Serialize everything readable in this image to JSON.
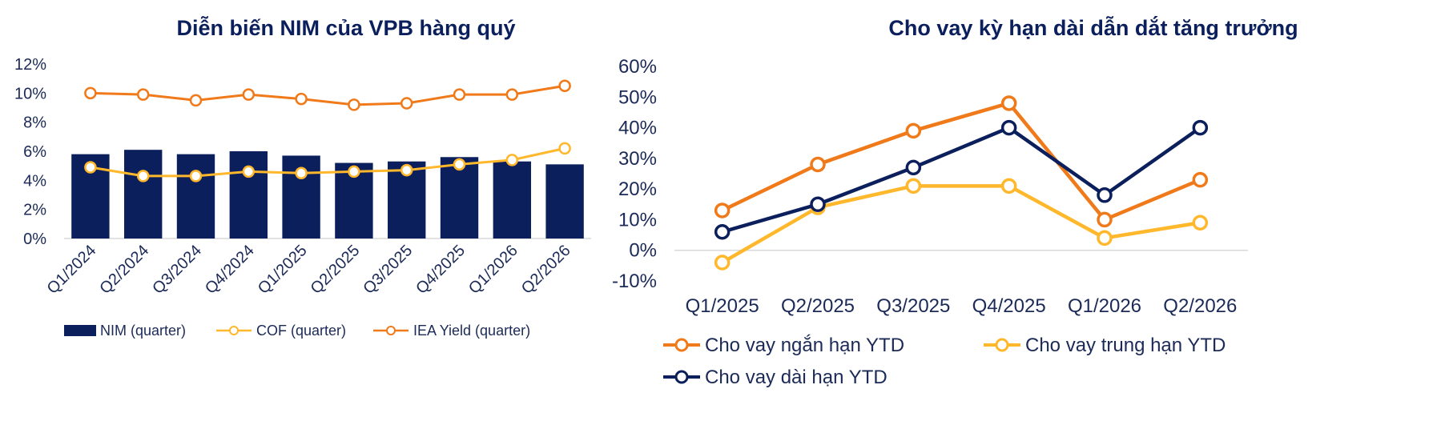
{
  "chart_data": [
    {
      "type": "bar+line",
      "title": "Diễn biến NIM của VPB hàng quý",
      "categories": [
        "Q1/2024",
        "Q2/2024",
        "Q3/2024",
        "Q4/2024",
        "Q1/2025",
        "Q2/2025",
        "Q3/2025",
        "Q4/2025",
        "Q1/2026",
        "Q2/2026"
      ],
      "y_ticks": [
        "0%",
        "2%",
        "4%",
        "6%",
        "8%",
        "10%",
        "12%"
      ],
      "ylim": [
        0,
        12
      ],
      "legend_position": "bottom",
      "series": [
        {
          "name": "NIM (quarter)",
          "type": "bar",
          "color": "#0b1f5c",
          "values": [
            5.8,
            6.1,
            5.8,
            6.0,
            5.7,
            5.2,
            5.3,
            5.6,
            5.3,
            5.1
          ]
        },
        {
          "name": "COF (quarter)",
          "type": "line",
          "color": "#ffb72b",
          "values": [
            4.9,
            4.3,
            4.3,
            4.6,
            4.5,
            4.6,
            4.7,
            5.1,
            5.4,
            6.2
          ]
        },
        {
          "name": "IEA Yield (quarter)",
          "type": "line",
          "color": "#f07a1a",
          "values": [
            10.0,
            9.9,
            9.5,
            9.9,
            9.6,
            9.2,
            9.3,
            9.9,
            9.9,
            10.5
          ]
        }
      ]
    },
    {
      "type": "line",
      "title": "Cho vay kỳ hạn dài dẫn dắt tăng trưởng",
      "categories": [
        "Q1/2025",
        "Q2/2025",
        "Q3/2025",
        "Q4/2025",
        "Q1/2026",
        "Q2/2026"
      ],
      "y_ticks": [
        "-10%",
        "0%",
        "10%",
        "20%",
        "30%",
        "40%",
        "50%",
        "60%"
      ],
      "ylim": [
        -10,
        60
      ],
      "legend_position": "bottom",
      "series": [
        {
          "name": "Cho vay ngắn hạn YTD",
          "color": "#f07a1a",
          "values": [
            13,
            28,
            39,
            48,
            10,
            23
          ]
        },
        {
          "name": "Cho vay trung hạn YTD",
          "color": "#ffb72b",
          "values": [
            -4,
            14,
            21,
            21,
            4,
            9
          ]
        },
        {
          "name": "Cho vay dài hạn YTD",
          "color": "#0b1f5c",
          "values": [
            6,
            15,
            27,
            40,
            18,
            40
          ]
        }
      ]
    }
  ]
}
